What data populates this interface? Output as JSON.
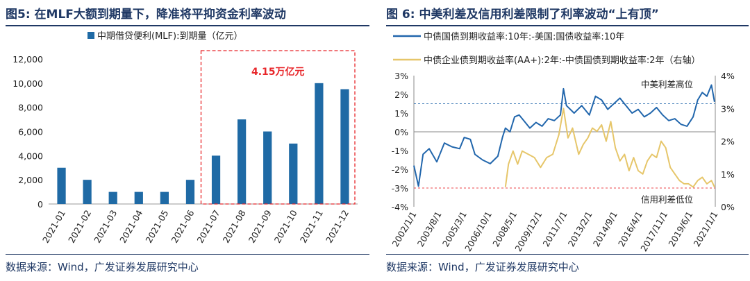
{
  "panel_left": {
    "title": "图5: 在MLF大额到期量下，降准将平抑资金利率波动",
    "source": "数据来源：Wind，广发证券发展研究中心"
  },
  "panel_right": {
    "title": "图 6:   中美利差及信用利差限制了利率波动“上有顶”",
    "source": "数据来源：Wind，广发证券发展研究中心"
  },
  "colors": {
    "title": "#1f3864",
    "bar": "#1f6aa5",
    "line_blue": "#2166ac",
    "line_gold": "#e6c66a",
    "highlight": "#e8262a"
  },
  "chart_data": [
    {
      "type": "bar",
      "title": "",
      "legend": [
        "中期借贷便利(MLF):到期量（亿元）"
      ],
      "categories": [
        "2021-01",
        "2021-02",
        "2021-03",
        "2021-04",
        "2021-05",
        "2021-06",
        "2021-07",
        "2021-08",
        "2021-09",
        "2021-10",
        "2021-11",
        "2021-12"
      ],
      "series": [
        {
          "name": "中期借贷便利(MLF):到期量（亿元）",
          "values": [
            3000,
            2000,
            1000,
            1000,
            1000,
            2000,
            4000,
            7000,
            6000,
            5000,
            10000,
            9500
          ]
        }
      ],
      "ylim": [
        0,
        12000
      ],
      "yticks": [
        "0",
        "2,000",
        "4,000",
        "6,000",
        "8,000",
        "10,000",
        "12,000"
      ],
      "annotation": "4.15万亿元",
      "highlight_categories": [
        "2021-07",
        "2021-12"
      ]
    },
    {
      "type": "line",
      "title": "",
      "legend": [
        "中债国债到期收益率:10年:-美国:国债收益率:10年",
        "中债企业债到期收益率(AA+):2年:-中债国债到期收益率:2年（右轴）"
      ],
      "x_ticks": [
        "2002/1/1",
        "2003/8/1",
        "2005/3/1",
        "2006/10/1",
        "2008/5/1",
        "2009/12/1",
        "2011/7/1",
        "2013/2/1",
        "2014/9/1",
        "2016/4/1",
        "2017/11/1",
        "2019/6/1",
        "2021/1/1"
      ],
      "y_left": {
        "ticks": [
          "3%",
          "2%",
          "1%",
          "0%",
          "-1%",
          "-2%",
          "-3%",
          "-4%"
        ],
        "range": [
          -4,
          3
        ]
      },
      "y_right": {
        "ticks": [
          "4%",
          "3%",
          "2%",
          "1%",
          "0%"
        ],
        "range": [
          0,
          4
        ]
      },
      "series": [
        {
          "name": "中债国债到期收益率:10年:-美国:国债收益率:10年",
          "axis": "left",
          "x": [
            2002.0,
            2002.3,
            2002.6,
            2003.0,
            2003.5,
            2004.0,
            2004.5,
            2005.0,
            2005.3,
            2005.7,
            2006.0,
            2006.5,
            2007.0,
            2007.5,
            2007.8,
            2008.0,
            2008.3,
            2008.6,
            2008.9,
            2009.2,
            2009.6,
            2010.0,
            2010.4,
            2010.8,
            2011.2,
            2011.6,
            2011.8,
            2012.0,
            2012.5,
            2013.0,
            2013.5,
            2013.9,
            2014.3,
            2014.7,
            2015.1,
            2015.5,
            2015.9,
            2016.3,
            2016.7,
            2017.1,
            2017.5,
            2017.9,
            2018.3,
            2018.7,
            2019.1,
            2019.5,
            2019.9,
            2020.3,
            2020.6,
            2020.9,
            2021.2,
            2021.5,
            2021.7
          ],
          "y": [
            -1.8,
            -2.9,
            -1.2,
            -0.9,
            -1.6,
            -0.6,
            -0.8,
            -0.9,
            -0.3,
            -0.4,
            -1.2,
            -1.5,
            -1.7,
            -1.3,
            -0.3,
            0.2,
            0.0,
            0.8,
            0.9,
            0.6,
            0.2,
            0.5,
            0.3,
            0.7,
            0.6,
            0.9,
            2.3,
            1.4,
            1.0,
            1.4,
            0.9,
            1.9,
            1.7,
            1.2,
            1.5,
            1.8,
            1.4,
            1.0,
            1.2,
            0.8,
            1.0,
            1.3,
            0.9,
            0.6,
            0.7,
            0.4,
            0.3,
            0.8,
            1.7,
            2.1,
            1.9,
            2.5,
            1.6
          ]
        },
        {
          "name": "中债企业债到期收益率(AA+):2年:-中债国债到期收益率:2年（右轴）",
          "axis": "right",
          "x": [
            2008.0,
            2008.2,
            2008.5,
            2008.8,
            2009.1,
            2009.5,
            2009.9,
            2010.3,
            2010.7,
            2011.1,
            2011.5,
            2011.8,
            2012.1,
            2012.4,
            2012.8,
            2013.1,
            2013.4,
            2013.7,
            2014.0,
            2014.3,
            2014.6,
            2014.9,
            2015.2,
            2015.5,
            2015.8,
            2016.1,
            2016.4,
            2016.7,
            2017.0,
            2017.3,
            2017.6,
            2017.9,
            2018.2,
            2018.5,
            2018.8,
            2019.1,
            2019.4,
            2019.7,
            2020.0,
            2020.3,
            2020.6,
            2020.9,
            2021.2,
            2021.5,
            2021.7
          ],
          "y": [
            0.6,
            1.3,
            1.7,
            1.3,
            1.7,
            1.6,
            1.5,
            1.2,
            1.5,
            1.6,
            2.2,
            3.0,
            2.1,
            2.4,
            1.6,
            1.9,
            2.1,
            2.4,
            2.3,
            2.5,
            2.0,
            2.6,
            1.8,
            1.4,
            1.6,
            1.1,
            1.5,
            1.1,
            1.0,
            1.4,
            1.6,
            1.5,
            2.0,
            1.8,
            1.2,
            1.0,
            0.8,
            0.7,
            0.7,
            0.6,
            0.8,
            0.9,
            0.7,
            0.8,
            0.6
          ]
        }
      ],
      "reference_lines": [
        {
          "label": "中美利差高位",
          "axis": "left",
          "value": 1.5
        },
        {
          "label": "信用利差低位",
          "axis": "left",
          "value": -3.0
        }
      ]
    }
  ]
}
